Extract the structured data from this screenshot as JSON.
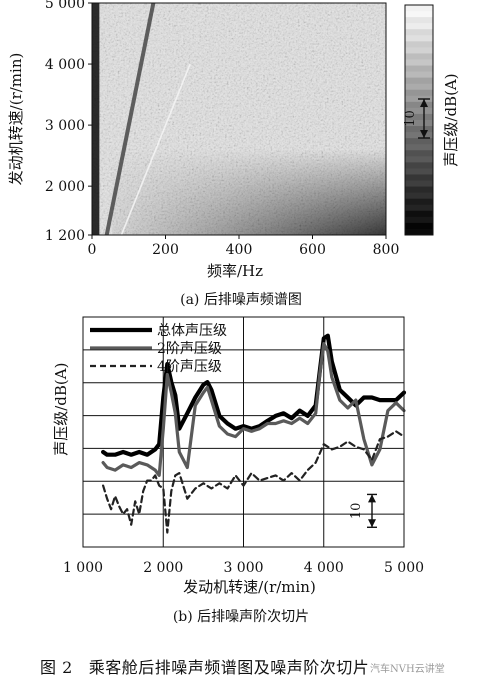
{
  "figure_caption": {
    "number": "图 2",
    "text": "乘客舱后排噪声频谱图及噪声阶次切片"
  },
  "watermark": "汽车NVH云讲堂",
  "colors": {
    "ink": "#111111",
    "total": "#000000",
    "order2": "#5a5a5a",
    "order4": "#222222"
  },
  "chart_data": [
    {
      "type": "heatmap",
      "subcaption": "(a) 后排噪声频谱图",
      "xlabel": "频率/Hz",
      "ylabel": "发动机转速/(r/min)",
      "xlim": [
        0,
        800
      ],
      "ylim": [
        1200,
        5000
      ],
      "xticks": [
        0,
        200,
        400,
        600,
        800
      ],
      "yticks": [
        1200,
        2000,
        3000,
        4000,
        5000
      ],
      "xtick_labels": [
        "0",
        "200",
        "400",
        "600",
        "800"
      ],
      "ytick_labels": [
        "1 200",
        "2 000",
        "3 000",
        "4 000",
        "5 000"
      ],
      "colorbar": {
        "label": "声压级/dB(A)",
        "scale_label": "10",
        "scale_span_db": 10
      },
      "order_lines": [
        {
          "order": 2,
          "freq_at_1200": 40,
          "freq_at_5000": 167
        },
        {
          "order": 4,
          "freq_at_1200": 80,
          "freq_at_4000": 267
        }
      ],
      "high_level_regions": [
        {
          "description": "left edge",
          "freq_range": [
            0,
            20
          ],
          "rpm_range": [
            1200,
            5000
          ]
        },
        {
          "description": "low rpm broadband",
          "freq_range": [
            300,
            800
          ],
          "rpm_range": [
            1200,
            2600
          ]
        }
      ]
    },
    {
      "type": "line",
      "subcaption": "(b) 后排噪声阶次切片",
      "xlabel": "发动机转速/(r/min)",
      "ylabel": "声压级/dB(A)",
      "xlim": [
        1000,
        5000
      ],
      "ylim": [
        -60,
        10
      ],
      "xticks": [
        1000,
        2000,
        3000,
        4000,
        5000
      ],
      "xtick_labels": [
        "1 000",
        "2 000",
        "3 000",
        "4 000",
        "5 000"
      ],
      "scale_bar_db": 10,
      "scale_bar_label": "10",
      "legend": {
        "position": "top-left",
        "entries": [
          "总体声压级",
          "2阶声压级",
          "4阶声压级"
        ]
      },
      "series": [
        {
          "name": "总体声压级",
          "x": [
            1250,
            1300,
            1400,
            1500,
            1600,
            1700,
            1800,
            1900,
            1950,
            2000,
            2050,
            2100,
            2150,
            2200,
            2300,
            2400,
            2500,
            2550,
            2600,
            2700,
            2800,
            2900,
            3000,
            3100,
            3200,
            3300,
            3400,
            3500,
            3600,
            3700,
            3800,
            3900,
            3950,
            4000,
            4050,
            4100,
            4200,
            4300,
            4400,
            4500,
            4600,
            4700,
            4800,
            4900,
            5000
          ],
          "y": [
            -31.1,
            -31.9,
            -31.9,
            -31.1,
            -31.9,
            -31.1,
            -31.9,
            -30.3,
            -28.7,
            -14.5,
            -4.3,
            -9.8,
            -13.8,
            -24.0,
            -19.3,
            -14.5,
            -10.6,
            -9.8,
            -12.2,
            -20.1,
            -22.4,
            -24.0,
            -23.2,
            -24.0,
            -23.2,
            -21.6,
            -20.1,
            -19.3,
            -20.8,
            -18.5,
            -20.1,
            -16.9,
            -6.7,
            3.5,
            4.3,
            -3.5,
            -12.2,
            -14.5,
            -16.9,
            -14.5,
            -14.5,
            -15.3,
            -15.3,
            -15.3,
            -13.0
          ]
        },
        {
          "name": "2阶声压级",
          "x": [
            1250,
            1300,
            1400,
            1500,
            1600,
            1700,
            1800,
            1900,
            1950,
            2000,
            2050,
            2100,
            2150,
            2200,
            2300,
            2400,
            2500,
            2550,
            2600,
            2700,
            2800,
            2900,
            3000,
            3100,
            3200,
            3300,
            3400,
            3500,
            3600,
            3700,
            3800,
            3900,
            3950,
            4000,
            4050,
            4100,
            4200,
            4300,
            4400,
            4500,
            4600,
            4700,
            4800,
            4900,
            5000
          ],
          "y": [
            -34.3,
            -35.8,
            -36.6,
            -35.0,
            -35.8,
            -34.3,
            -35.0,
            -36.6,
            -38.2,
            -24.0,
            -7.5,
            -13.0,
            -19.3,
            -31.1,
            -35.8,
            -16.9,
            -13.0,
            -11.4,
            -15.3,
            -23.2,
            -25.6,
            -26.4,
            -24.0,
            -24.8,
            -24.0,
            -22.4,
            -22.4,
            -21.6,
            -22.4,
            -20.8,
            -22.4,
            -19.3,
            -7.5,
            1.9,
            -0.4,
            -8.3,
            -15.3,
            -17.7,
            -15.3,
            -27.2,
            -35.0,
            -30.3,
            -18.5,
            -16.1,
            -18.5
          ]
        },
        {
          "name": "4阶声压级",
          "x": [
            1250,
            1300,
            1350,
            1400,
            1450,
            1500,
            1550,
            1600,
            1650,
            1700,
            1750,
            1800,
            1850,
            1900,
            1950,
            2000,
            2050,
            2100,
            2150,
            2200,
            2300,
            2400,
            2500,
            2600,
            2700,
            2800,
            2900,
            3000,
            3100,
            3200,
            3300,
            3400,
            3500,
            3600,
            3700,
            3800,
            3900,
            4000,
            4100,
            4200,
            4300,
            4400,
            4500,
            4600,
            4700,
            4800,
            4900,
            5000
          ],
          "y": [
            -41.3,
            -45.3,
            -48.5,
            -44.5,
            -47.6,
            -50.0,
            -48.5,
            -53.2,
            -46.1,
            -50.0,
            -43.0,
            -39.8,
            -39.8,
            -38.2,
            -41.3,
            -42.2,
            -55.6,
            -43.0,
            -38.2,
            -37.5,
            -45.3,
            -42.2,
            -40.6,
            -42.2,
            -40.6,
            -42.2,
            -38.2,
            -41.3,
            -37.5,
            -39.8,
            -39.0,
            -38.2,
            -39.8,
            -37.5,
            -39.8,
            -36.6,
            -34.3,
            -28.7,
            -30.3,
            -29.5,
            -27.9,
            -29.5,
            -30.3,
            -33.5,
            -27.2,
            -26.4,
            -24.8,
            -26.4
          ]
        }
      ]
    }
  ]
}
